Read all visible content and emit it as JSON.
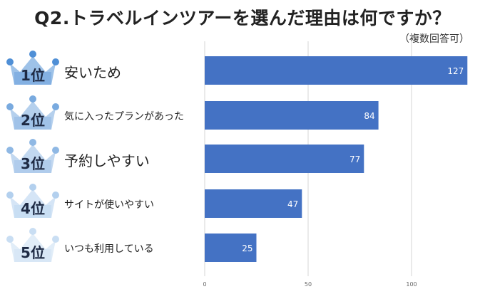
{
  "title": "Q2.トラベルインツアーを選んだ理由は何ですか？",
  "subtitle": "（複数回答可）",
  "chart_data": {
    "type": "bar",
    "orientation": "horizontal",
    "categories": [
      "安いため",
      "気に入ったプランがあった",
      "予約しやすい",
      "サイトが使いやすい",
      "いつも利用している"
    ],
    "ranks": [
      "1位",
      "2位",
      "3位",
      "4位",
      "5位"
    ],
    "values": [
      127,
      84,
      77,
      47,
      25
    ],
    "xlim": [
      0,
      130
    ],
    "xticks": [
      0,
      50,
      100
    ],
    "grid": true,
    "bar_color": "#4472c4",
    "crown_colors": [
      "#4f8fd6",
      "#79aadf",
      "#8fb8e4",
      "#b3d0ee",
      "#c9def3"
    ]
  }
}
